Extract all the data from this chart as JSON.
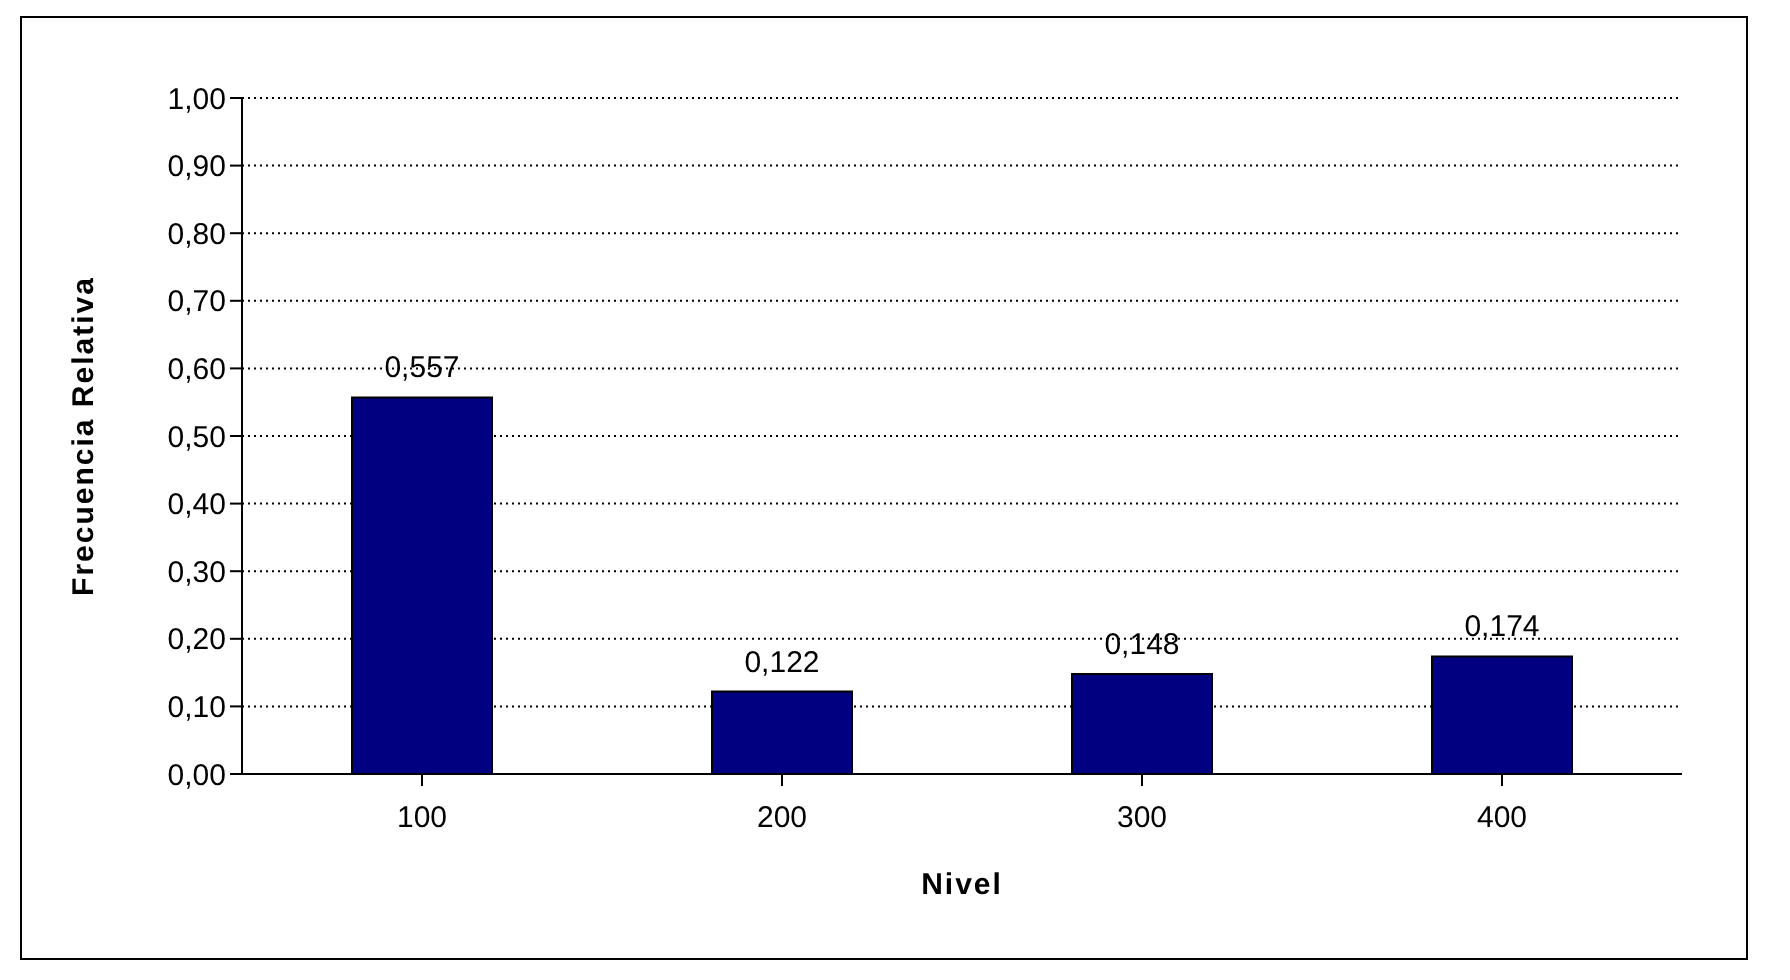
{
  "chart_data": {
    "type": "bar",
    "xlabel": "Nivel",
    "ylabel": "Frecuencia Relativa",
    "categories": [
      "100",
      "200",
      "300",
      "400"
    ],
    "values": [
      0.557,
      0.122,
      0.148,
      0.174
    ],
    "value_labels": [
      "0,557",
      "0,122",
      "0,148",
      "0,174"
    ],
    "color": "#000080",
    "ylim": [
      0,
      1
    ],
    "yticks": [
      {
        "value": 0,
        "label": "0,00"
      },
      {
        "value": 0.1,
        "label": "0,10"
      },
      {
        "value": 0.2,
        "label": "0,20"
      },
      {
        "value": 0.3,
        "label": "0,30"
      },
      {
        "value": 0.4,
        "label": "0,40"
      },
      {
        "value": 0.5,
        "label": "0,50"
      },
      {
        "value": 0.6,
        "label": "0,60"
      },
      {
        "value": 0.7,
        "label": "0,70"
      },
      {
        "value": 0.8,
        "label": "0,80"
      },
      {
        "value": 0.9,
        "label": "0,90"
      },
      {
        "value": 1,
        "label": "1,00"
      }
    ],
    "grid": "y"
  }
}
